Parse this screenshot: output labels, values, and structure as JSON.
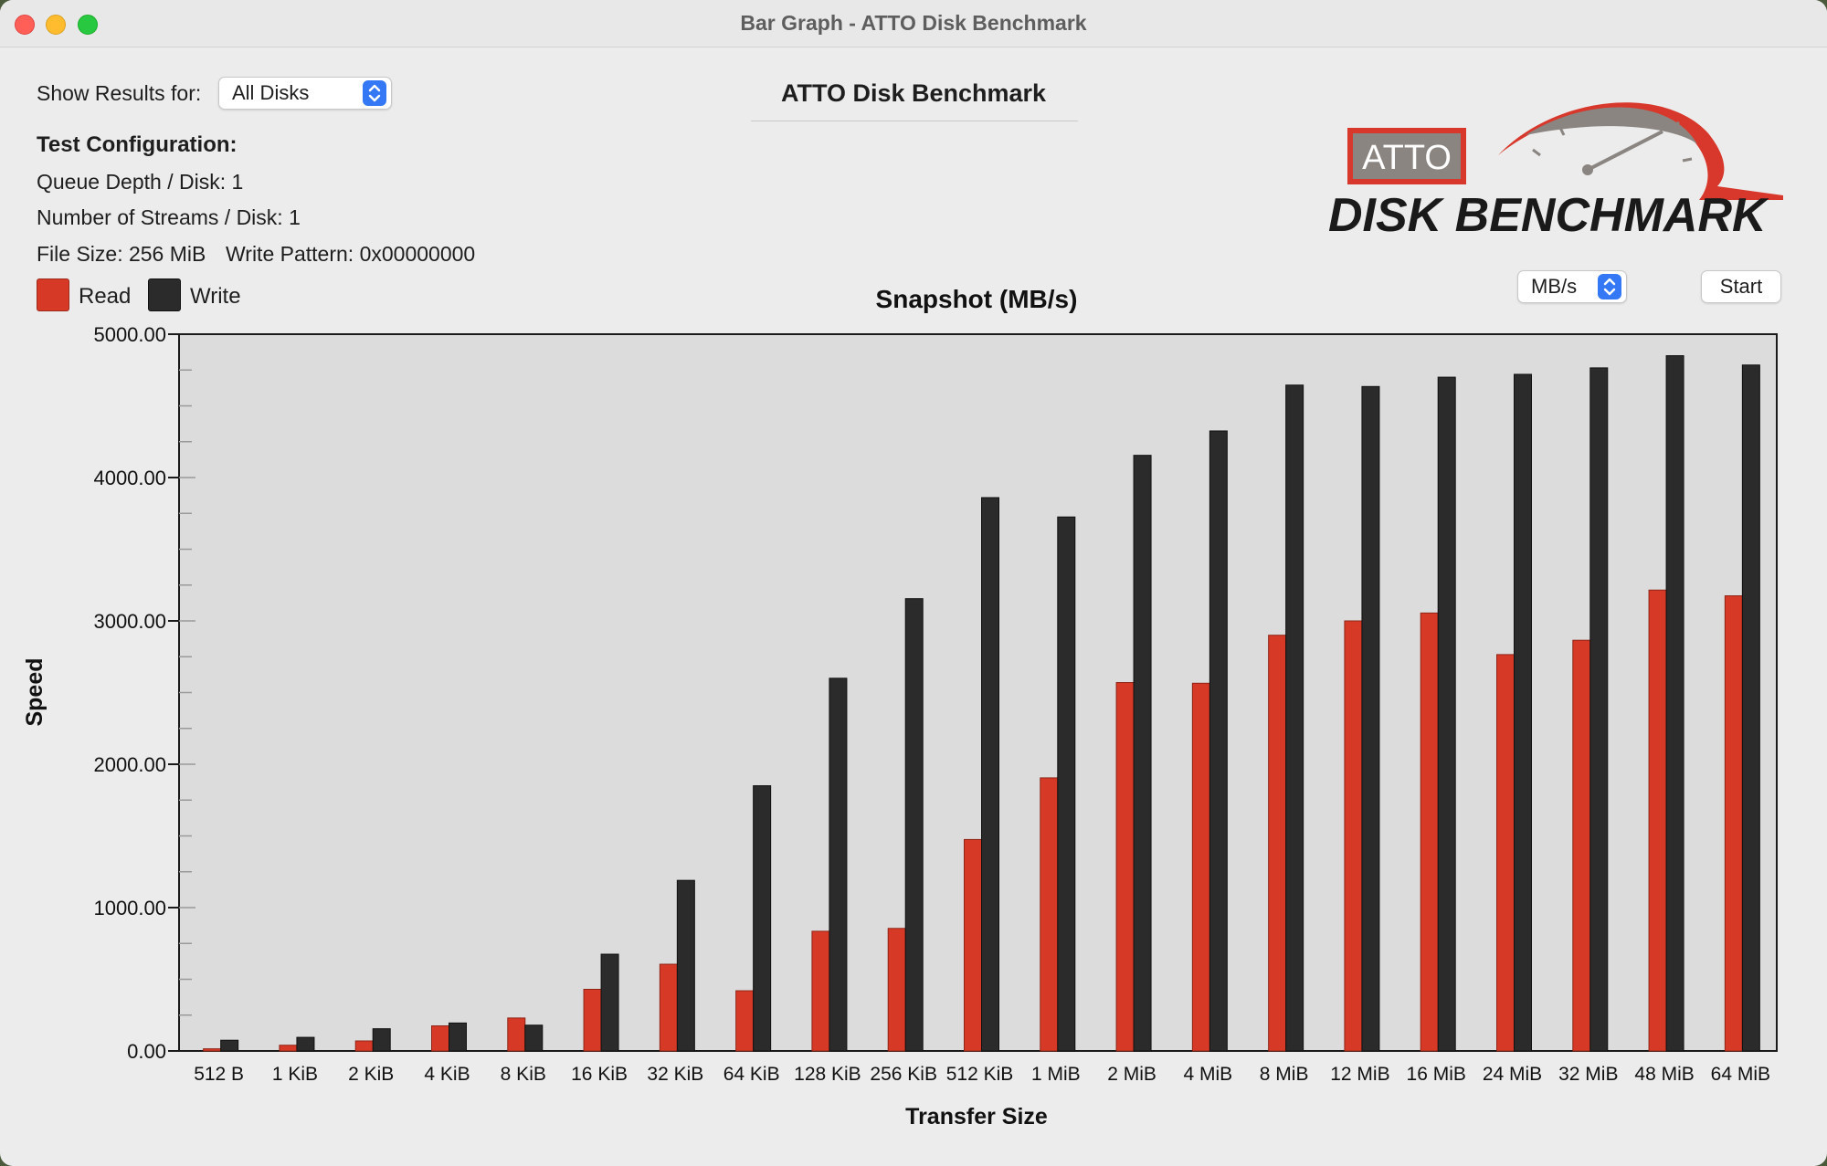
{
  "window": {
    "title": "Bar Graph - ATTO Disk Benchmark"
  },
  "header": {
    "show_results_label": "Show Results for:",
    "disk_select_value": "All Disks",
    "app_title": "ATTO Disk Benchmark"
  },
  "config": {
    "heading": "Test Configuration:",
    "queue_depth": "Queue Depth / Disk: 1",
    "streams": "Number of Streams / Disk: 1",
    "file_size": "File Size: 256 MiB",
    "write_pattern": "Write Pattern: 0x00000000"
  },
  "logo": {
    "badge_text": "ATTO",
    "wordmark": "DISK BENCHMARK"
  },
  "legend": {
    "read_label": "Read",
    "write_label": "Write"
  },
  "controls": {
    "units_value": "MB/s",
    "start_label": "Start"
  },
  "colors": {
    "read": "#d63a26",
    "write": "#2b2b2b",
    "accent": "#3478f6",
    "logo_red": "#d8382b",
    "logo_gray": "#8a8581",
    "plot_bg": "#dcdcdc"
  },
  "icons": {
    "disk_select": "chevron-up-down-icon",
    "units_select": "chevron-up-down-icon"
  },
  "chart_data": {
    "type": "bar",
    "title": "Snapshot (MB/s)",
    "xlabel": "Transfer Size",
    "ylabel": "Speed",
    "ylim": [
      0,
      5000
    ],
    "yticks": [
      "0.00",
      "1000.00",
      "2000.00",
      "3000.00",
      "4000.00",
      "5000.00"
    ],
    "legend_position": "top-left",
    "categories": [
      "512 B",
      "1 KiB",
      "2 KiB",
      "4 KiB",
      "8 KiB",
      "16 KiB",
      "32 KiB",
      "64 KiB",
      "128 KiB",
      "256 KiB",
      "512 KiB",
      "1 MiB",
      "2 MiB",
      "4 MiB",
      "8 MiB",
      "12 MiB",
      "16 MiB",
      "24 MiB",
      "32 MiB",
      "48 MiB",
      "64 MiB"
    ],
    "series": [
      {
        "name": "Read",
        "values": [
          15,
          40,
          70,
          175,
          230,
          430,
          605,
          420,
          835,
          855,
          1475,
          1905,
          2570,
          2565,
          2900,
          3000,
          3055,
          2765,
          2865,
          3215,
          3175
        ]
      },
      {
        "name": "Write",
        "values": [
          75,
          95,
          155,
          195,
          180,
          675,
          1190,
          1850,
          2600,
          3155,
          3860,
          3725,
          4155,
          4325,
          4645,
          4635,
          4700,
          4720,
          4765,
          4850,
          4785
        ]
      }
    ]
  }
}
